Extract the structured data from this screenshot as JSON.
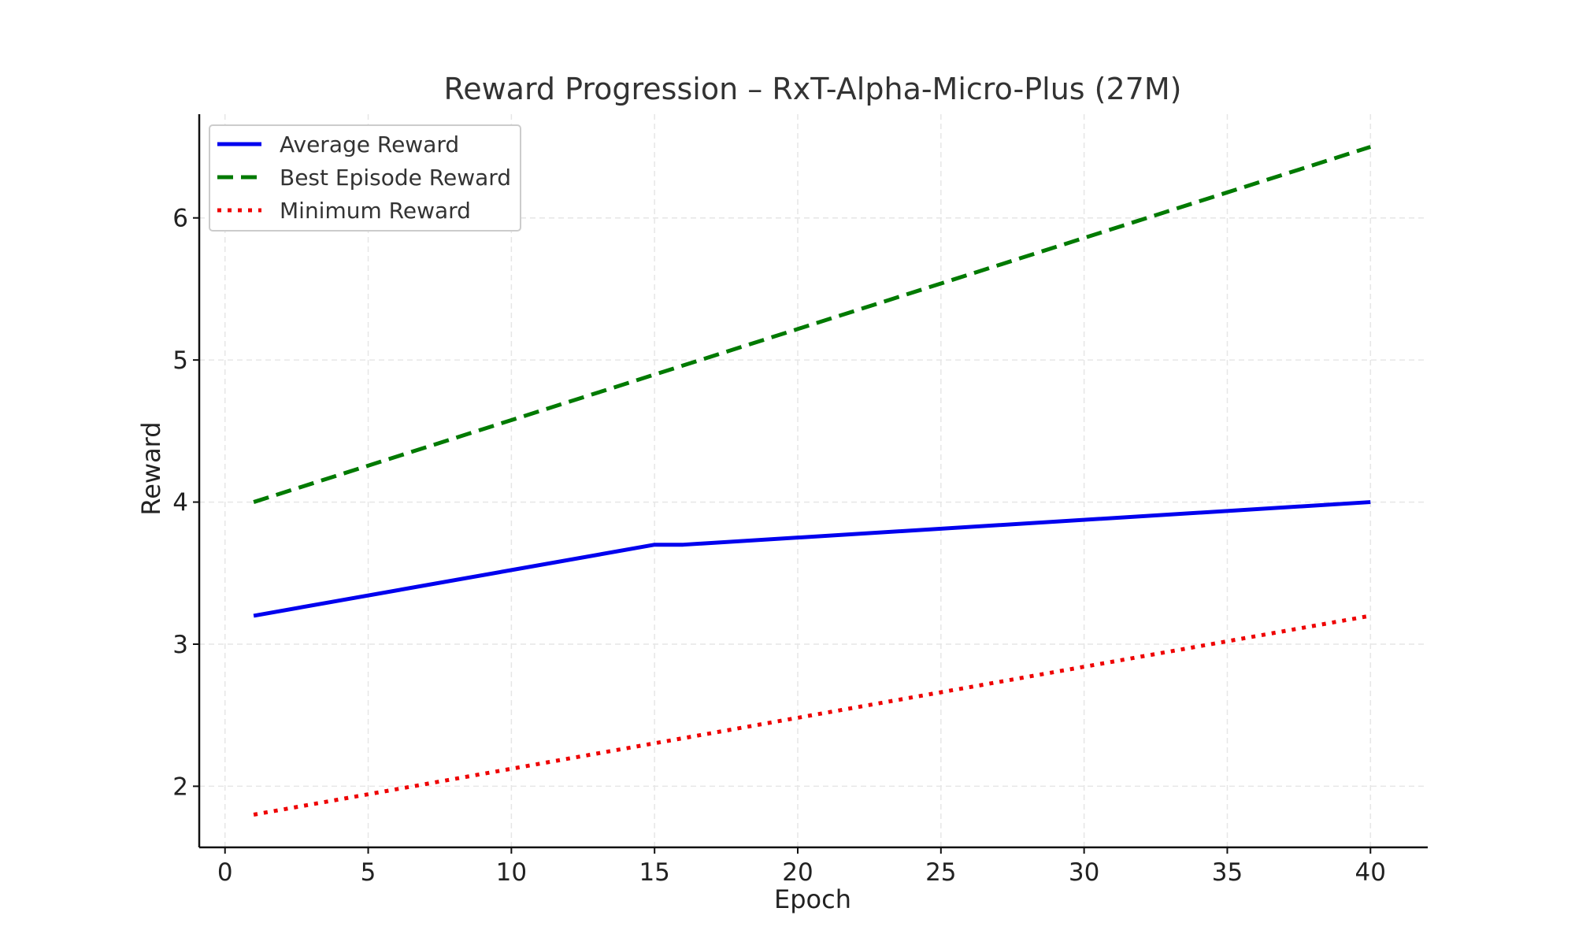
{
  "chart_data": {
    "type": "line",
    "title": "Reward Progression – RxT-Alpha-Micro-Plus (27M)",
    "xlabel": "Epoch",
    "ylabel": "Reward",
    "xlim": [
      -0.9,
      42
    ],
    "ylim": [
      1.57,
      6.73
    ],
    "xticks": [
      0,
      5,
      10,
      15,
      20,
      25,
      30,
      35,
      40
    ],
    "yticks": [
      2,
      3,
      4,
      5,
      6
    ],
    "grid": true,
    "legend": "top-left",
    "series": [
      {
        "name": "Average Reward",
        "color": "#0000ee",
        "style": "solid",
        "x": [
          1,
          15,
          16,
          40
        ],
        "y": [
          3.2,
          3.7,
          3.7,
          4.0
        ]
      },
      {
        "name": "Best Episode Reward",
        "color": "#007a00",
        "style": "dashed",
        "x": [
          1,
          40
        ],
        "y": [
          4.0,
          6.5
        ]
      },
      {
        "name": "Minimum Reward",
        "color": "#ee0000",
        "style": "dotted",
        "x": [
          1,
          40
        ],
        "y": [
          1.8,
          3.2
        ]
      }
    ]
  }
}
